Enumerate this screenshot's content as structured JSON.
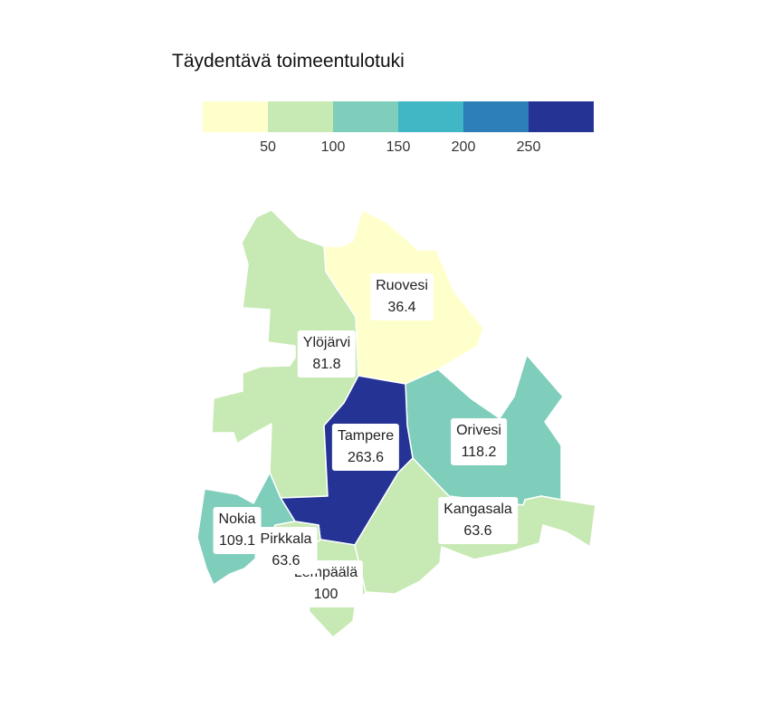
{
  "title": "Täydentävä toimeentulotuki",
  "legend": {
    "colors": [
      "#ffffcc",
      "#c7e9b4",
      "#7fcdbb",
      "#41b6c4",
      "#2c7fb8",
      "#253494"
    ],
    "ticks": [
      "50",
      "100",
      "150",
      "200",
      "250"
    ]
  },
  "regions": [
    {
      "name": "Ruovesi",
      "value": "36.4",
      "color": "#ffffcc"
    },
    {
      "name": "Ylöjärvi",
      "value": "81.8",
      "color": "#c7e9b4"
    },
    {
      "name": "Tampere",
      "value": "263.6",
      "color": "#253494"
    },
    {
      "name": "Orivesi",
      "value": "118.2",
      "color": "#7fcdbb"
    },
    {
      "name": "Kangasala",
      "value": "63.6",
      "color": "#c7e9b4"
    },
    {
      "name": "Nokia",
      "value": "109.1",
      "color": "#7fcdbb"
    },
    {
      "name": "Pirkkala",
      "value": "63.6",
      "color": "#c7e9b4"
    },
    {
      "name": "Lempäälä",
      "value": "100",
      "color": "#c7e9b4"
    }
  ]
}
